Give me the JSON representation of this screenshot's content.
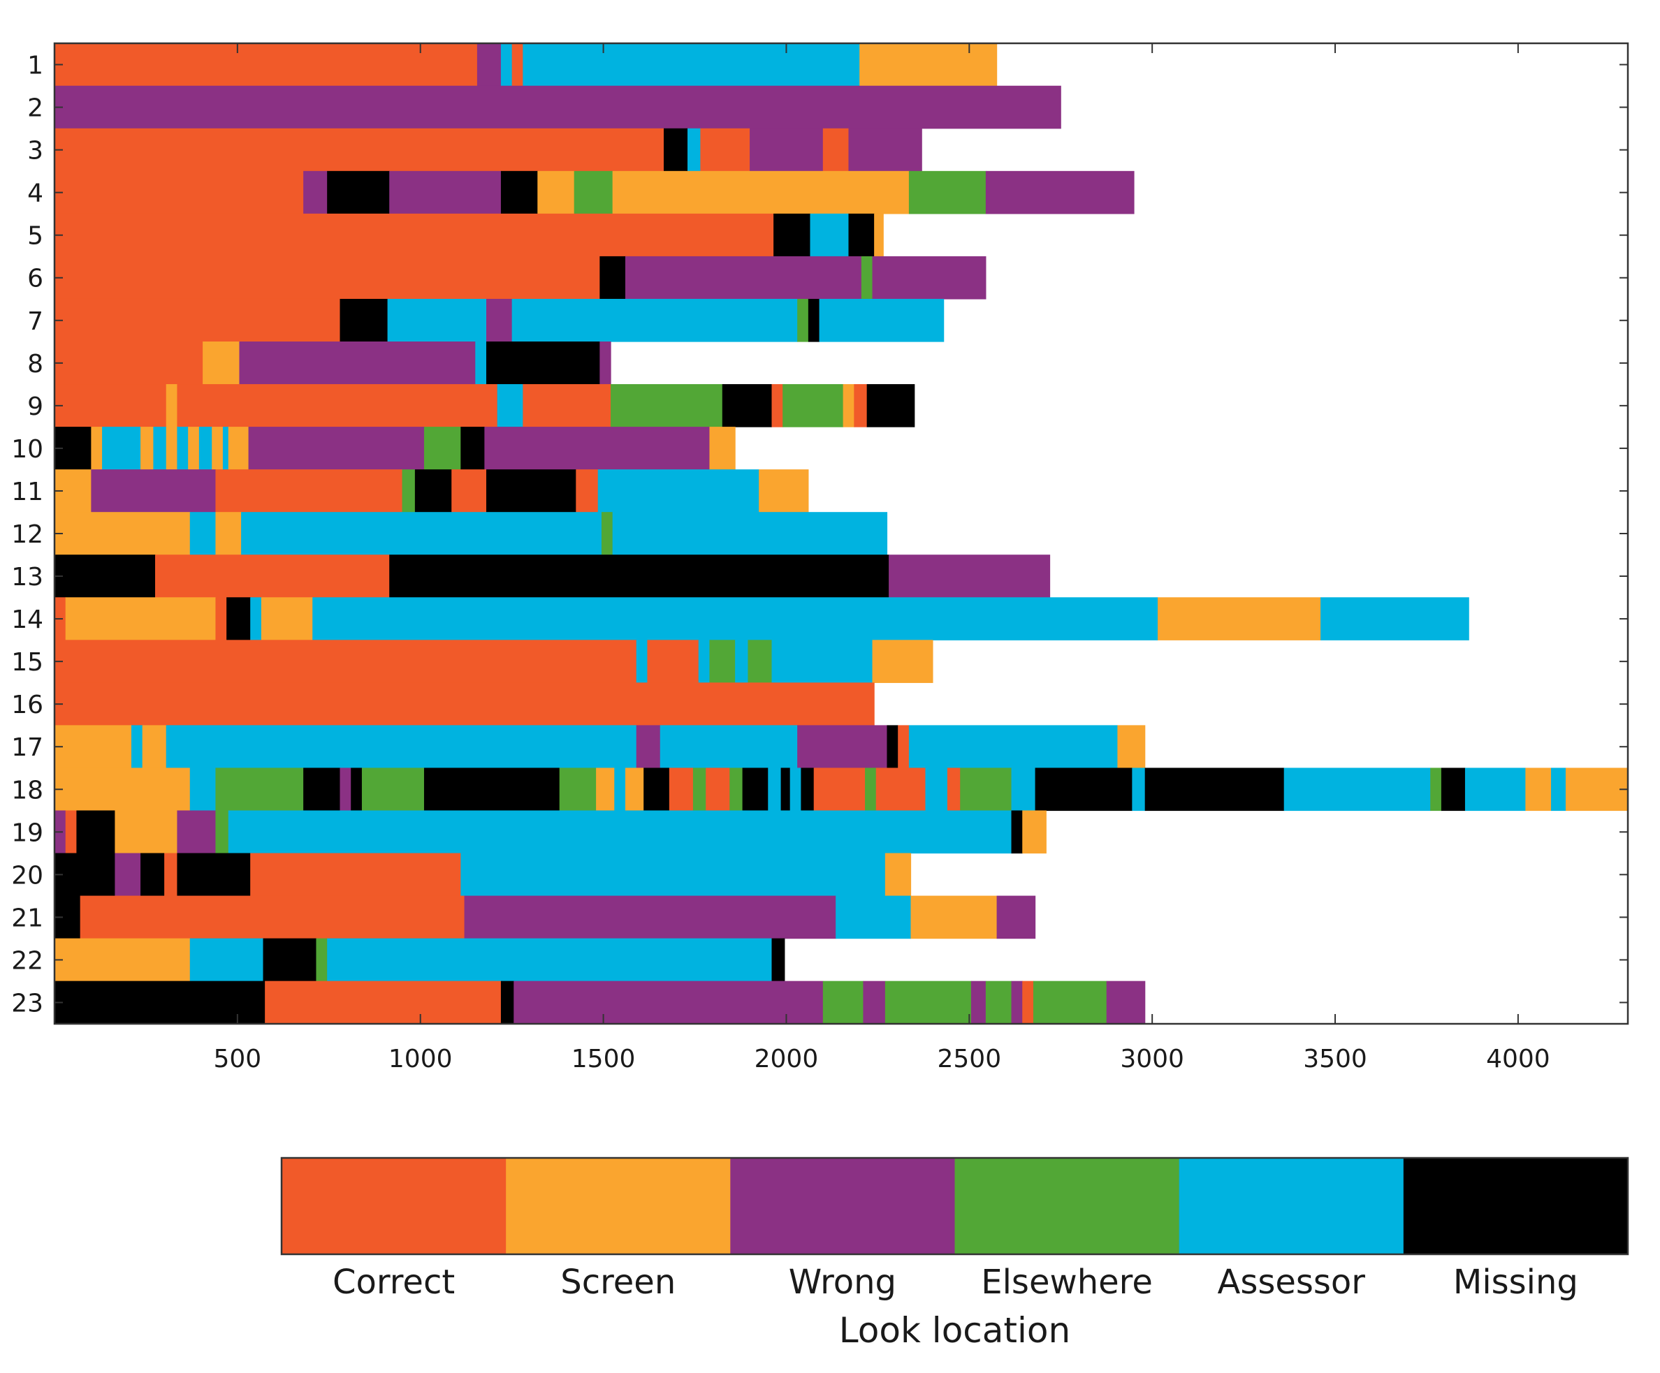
{
  "chart_data": {
    "type": "bar",
    "orientation": "horizontal-stacked-timeline",
    "title": "",
    "xlabel": "",
    "ylabel": "",
    "xlim": [
      0,
      4300
    ],
    "xticks": [
      500,
      1000,
      1500,
      2000,
      2500,
      3000,
      3500,
      4000
    ],
    "legend_title": "Look location",
    "legend_position": "bottom",
    "categories": [
      {
        "key": "C",
        "name": "Correct",
        "color": "#f15a29"
      },
      {
        "key": "S",
        "name": "Screen",
        "color": "#faa52f"
      },
      {
        "key": "W",
        "name": "Wrong",
        "color": "#8b3184"
      },
      {
        "key": "E",
        "name": "Elsewhere",
        "color": "#52a736"
      },
      {
        "key": "A",
        "name": "Assessor",
        "color": "#00b3e0"
      },
      {
        "key": "M",
        "name": "Missing",
        "color": "#000000"
      }
    ],
    "rows": [
      {
        "label": "1",
        "segments": [
          [
            "C",
            0,
            1155
          ],
          [
            "W",
            1155,
            1220
          ],
          [
            "A",
            1220,
            1250
          ],
          [
            "C",
            1250,
            1280
          ],
          [
            "A",
            1280,
            2200
          ],
          [
            "S",
            2200,
            2575
          ]
        ]
      },
      {
        "label": "2",
        "segments": [
          [
            "W",
            0,
            2750
          ]
        ]
      },
      {
        "label": "3",
        "segments": [
          [
            "C",
            0,
            1665
          ],
          [
            "M",
            1665,
            1730
          ],
          [
            "A",
            1730,
            1765
          ],
          [
            "C",
            1765,
            1900
          ],
          [
            "W",
            1900,
            2100
          ],
          [
            "C",
            2100,
            2170
          ],
          [
            "W",
            2170,
            2370
          ]
        ]
      },
      {
        "label": "4",
        "segments": [
          [
            "C",
            0,
            680
          ],
          [
            "W",
            680,
            745
          ],
          [
            "M",
            745,
            915
          ],
          [
            "W",
            915,
            1220
          ],
          [
            "M",
            1220,
            1320
          ],
          [
            "S",
            1320,
            1420
          ],
          [
            "E",
            1420,
            1525
          ],
          [
            "S",
            1525,
            2335
          ],
          [
            "E",
            2335,
            2545
          ],
          [
            "W",
            2545,
            2950
          ]
        ]
      },
      {
        "label": "5",
        "segments": [
          [
            "C",
            0,
            1965
          ],
          [
            "M",
            1965,
            2065
          ],
          [
            "A",
            2065,
            2170
          ],
          [
            "M",
            2170,
            2240
          ],
          [
            "S",
            2240,
            2265
          ]
        ]
      },
      {
        "label": "6",
        "segments": [
          [
            "C",
            0,
            1490
          ],
          [
            "M",
            1490,
            1560
          ],
          [
            "W",
            1560,
            2205
          ],
          [
            "E",
            2205,
            2235
          ],
          [
            "W",
            2235,
            2545
          ]
        ]
      },
      {
        "label": "7",
        "segments": [
          [
            "C",
            0,
            780
          ],
          [
            "M",
            780,
            910
          ],
          [
            "A",
            910,
            1180
          ],
          [
            "W",
            1180,
            1250
          ],
          [
            "A",
            1250,
            2030
          ],
          [
            "E",
            2030,
            2060
          ],
          [
            "M",
            2060,
            2090
          ],
          [
            "A",
            2090,
            2430
          ]
        ]
      },
      {
        "label": "8",
        "segments": [
          [
            "C",
            0,
            405
          ],
          [
            "S",
            405,
            505
          ],
          [
            "W",
            505,
            1150
          ],
          [
            "A",
            1150,
            1180
          ],
          [
            "M",
            1180,
            1490
          ],
          [
            "W",
            1490,
            1520
          ]
        ]
      },
      {
        "label": "9",
        "segments": [
          [
            "C",
            0,
            305
          ],
          [
            "S",
            305,
            335
          ],
          [
            "C",
            335,
            1210
          ],
          [
            "A",
            1210,
            1280
          ],
          [
            "C",
            1280,
            1520
          ],
          [
            "E",
            1520,
            1825
          ],
          [
            "M",
            1825,
            1960
          ],
          [
            "C",
            1960,
            1990
          ],
          [
            "E",
            1990,
            2155
          ],
          [
            "S",
            2155,
            2185
          ],
          [
            "C",
            2185,
            2220
          ],
          [
            "M",
            2220,
            2350
          ]
        ]
      },
      {
        "label": "10",
        "segments": [
          [
            "M",
            0,
            100
          ],
          [
            "S",
            100,
            130
          ],
          [
            "A",
            130,
            235
          ],
          [
            "S",
            235,
            270
          ],
          [
            "A",
            270,
            305
          ],
          [
            "S",
            305,
            335
          ],
          [
            "A",
            335,
            365
          ],
          [
            "S",
            365,
            395
          ],
          [
            "A",
            395,
            430
          ],
          [
            "S",
            430,
            460
          ],
          [
            "A",
            460,
            475
          ],
          [
            "S",
            475,
            530
          ],
          [
            "W",
            530,
            1010
          ],
          [
            "E",
            1010,
            1110
          ],
          [
            "M",
            1110,
            1175
          ],
          [
            "W",
            1175,
            1790
          ],
          [
            "S",
            1790,
            1860
          ]
        ]
      },
      {
        "label": "11",
        "segments": [
          [
            "S",
            0,
            100
          ],
          [
            "W",
            100,
            440
          ],
          [
            "C",
            440,
            950
          ],
          [
            "E",
            950,
            985
          ],
          [
            "M",
            985,
            1085
          ],
          [
            "C",
            1085,
            1180
          ],
          [
            "M",
            1180,
            1425
          ],
          [
            "C",
            1425,
            1485
          ],
          [
            "A",
            1485,
            1925
          ],
          [
            "S",
            1925,
            2060
          ]
        ]
      },
      {
        "label": "12",
        "segments": [
          [
            "S",
            0,
            370
          ],
          [
            "A",
            370,
            440
          ],
          [
            "S",
            440,
            510
          ],
          [
            "A",
            510,
            1495
          ],
          [
            "E",
            1495,
            1525
          ],
          [
            "A",
            1525,
            2275
          ]
        ]
      },
      {
        "label": "13",
        "segments": [
          [
            "M",
            0,
            275
          ],
          [
            "C",
            275,
            915
          ],
          [
            "M",
            915,
            2280
          ],
          [
            "W",
            2280,
            2720
          ]
        ]
      },
      {
        "label": "14",
        "segments": [
          [
            "C",
            0,
            30
          ],
          [
            "S",
            30,
            440
          ],
          [
            "C",
            440,
            470
          ],
          [
            "M",
            470,
            535
          ],
          [
            "A",
            535,
            565
          ],
          [
            "S",
            565,
            705
          ],
          [
            "A",
            705,
            3015
          ],
          [
            "S",
            3015,
            3460
          ],
          [
            "A",
            3460,
            3865
          ]
        ]
      },
      {
        "label": "15",
        "segments": [
          [
            "C",
            0,
            1590
          ],
          [
            "A",
            1590,
            1620
          ],
          [
            "C",
            1620,
            1760
          ],
          [
            "A",
            1760,
            1790
          ],
          [
            "E",
            1790,
            1860
          ],
          [
            "A",
            1860,
            1895
          ],
          [
            "E",
            1895,
            1960
          ],
          [
            "A",
            1960,
            2235
          ],
          [
            "S",
            2235,
            2400
          ]
        ]
      },
      {
        "label": "16",
        "segments": [
          [
            "C",
            0,
            2240
          ]
        ]
      },
      {
        "label": "17",
        "segments": [
          [
            "S",
            0,
            210
          ],
          [
            "A",
            210,
            240
          ],
          [
            "S",
            240,
            305
          ],
          [
            "A",
            305,
            1590
          ],
          [
            "W",
            1590,
            1655
          ],
          [
            "A",
            1655,
            2030
          ],
          [
            "W",
            2030,
            2275
          ],
          [
            "M",
            2275,
            2305
          ],
          [
            "C",
            2305,
            2335
          ],
          [
            "A",
            2335,
            2905
          ],
          [
            "S",
            2905,
            2980
          ]
        ]
      },
      {
        "label": "18",
        "segments": [
          [
            "S",
            0,
            370
          ],
          [
            "A",
            370,
            440
          ],
          [
            "E",
            440,
            680
          ],
          [
            "M",
            680,
            780
          ],
          [
            "W",
            780,
            810
          ],
          [
            "M",
            810,
            840
          ],
          [
            "E",
            840,
            1010
          ],
          [
            "M",
            1010,
            1380
          ],
          [
            "E",
            1380,
            1480
          ],
          [
            "S",
            1480,
            1530
          ],
          [
            "A",
            1530,
            1560
          ],
          [
            "S",
            1560,
            1610
          ],
          [
            "M",
            1610,
            1680
          ],
          [
            "C",
            1680,
            1745
          ],
          [
            "E",
            1745,
            1780
          ],
          [
            "C",
            1780,
            1845
          ],
          [
            "E",
            1845,
            1880
          ],
          [
            "M",
            1880,
            1950
          ],
          [
            "A",
            1950,
            1985
          ],
          [
            "M",
            1985,
            2010
          ],
          [
            "A",
            2010,
            2040
          ],
          [
            "M",
            2040,
            2075
          ],
          [
            "C",
            2075,
            2215
          ],
          [
            "E",
            2215,
            2245
          ],
          [
            "C",
            2245,
            2380
          ],
          [
            "A",
            2380,
            2440
          ],
          [
            "C",
            2440,
            2475
          ],
          [
            "E",
            2475,
            2615
          ],
          [
            "A",
            2615,
            2680
          ],
          [
            "M",
            2680,
            2945
          ],
          [
            "A",
            2945,
            2980
          ],
          [
            "M",
            2980,
            3360
          ],
          [
            "A",
            3360,
            3760
          ],
          [
            "E",
            3760,
            3790
          ],
          [
            "M",
            3790,
            3855
          ],
          [
            "A",
            3855,
            4020
          ],
          [
            "S",
            4020,
            4090
          ],
          [
            "A",
            4090,
            4130
          ],
          [
            "S",
            4130,
            4300
          ]
        ]
      },
      {
        "label": "19",
        "segments": [
          [
            "W",
            0,
            30
          ],
          [
            "C",
            30,
            60
          ],
          [
            "M",
            60,
            165
          ],
          [
            "S",
            165,
            335
          ],
          [
            "W",
            335,
            440
          ],
          [
            "E",
            440,
            475
          ],
          [
            "A",
            475,
            2615
          ],
          [
            "M",
            2615,
            2645
          ],
          [
            "S",
            2645,
            2710
          ]
        ]
      },
      {
        "label": "20",
        "segments": [
          [
            "M",
            0,
            165
          ],
          [
            "W",
            165,
            235
          ],
          [
            "M",
            235,
            300
          ],
          [
            "C",
            300,
            335
          ],
          [
            "M",
            335,
            535
          ],
          [
            "C",
            535,
            1110
          ],
          [
            "A",
            1110,
            2270
          ],
          [
            "S",
            2270,
            2340
          ]
        ]
      },
      {
        "label": "21",
        "segments": [
          [
            "M",
            0,
            70
          ],
          [
            "C",
            70,
            1120
          ],
          [
            "W",
            1120,
            2135
          ],
          [
            "A",
            2135,
            2340
          ],
          [
            "S",
            2340,
            2575
          ],
          [
            "W",
            2575,
            2680
          ]
        ]
      },
      {
        "label": "22",
        "segments": [
          [
            "S",
            0,
            370
          ],
          [
            "A",
            370,
            570
          ],
          [
            "M",
            570,
            715
          ],
          [
            "E",
            715,
            745
          ],
          [
            "A",
            745,
            1960
          ],
          [
            "M",
            1960,
            1995
          ]
        ]
      },
      {
        "label": "23",
        "segments": [
          [
            "M",
            0,
            575
          ],
          [
            "C",
            575,
            1220
          ],
          [
            "M",
            1220,
            1255
          ],
          [
            "W",
            1255,
            2100
          ],
          [
            "E",
            2100,
            2210
          ],
          [
            "W",
            2210,
            2270
          ],
          [
            "E",
            2270,
            2505
          ],
          [
            "W",
            2505,
            2545
          ],
          [
            "E",
            2545,
            2615
          ],
          [
            "W",
            2615,
            2645
          ],
          [
            "C",
            2645,
            2675
          ],
          [
            "E",
            2675,
            2875
          ],
          [
            "W",
            2875,
            2980
          ]
        ]
      }
    ]
  }
}
